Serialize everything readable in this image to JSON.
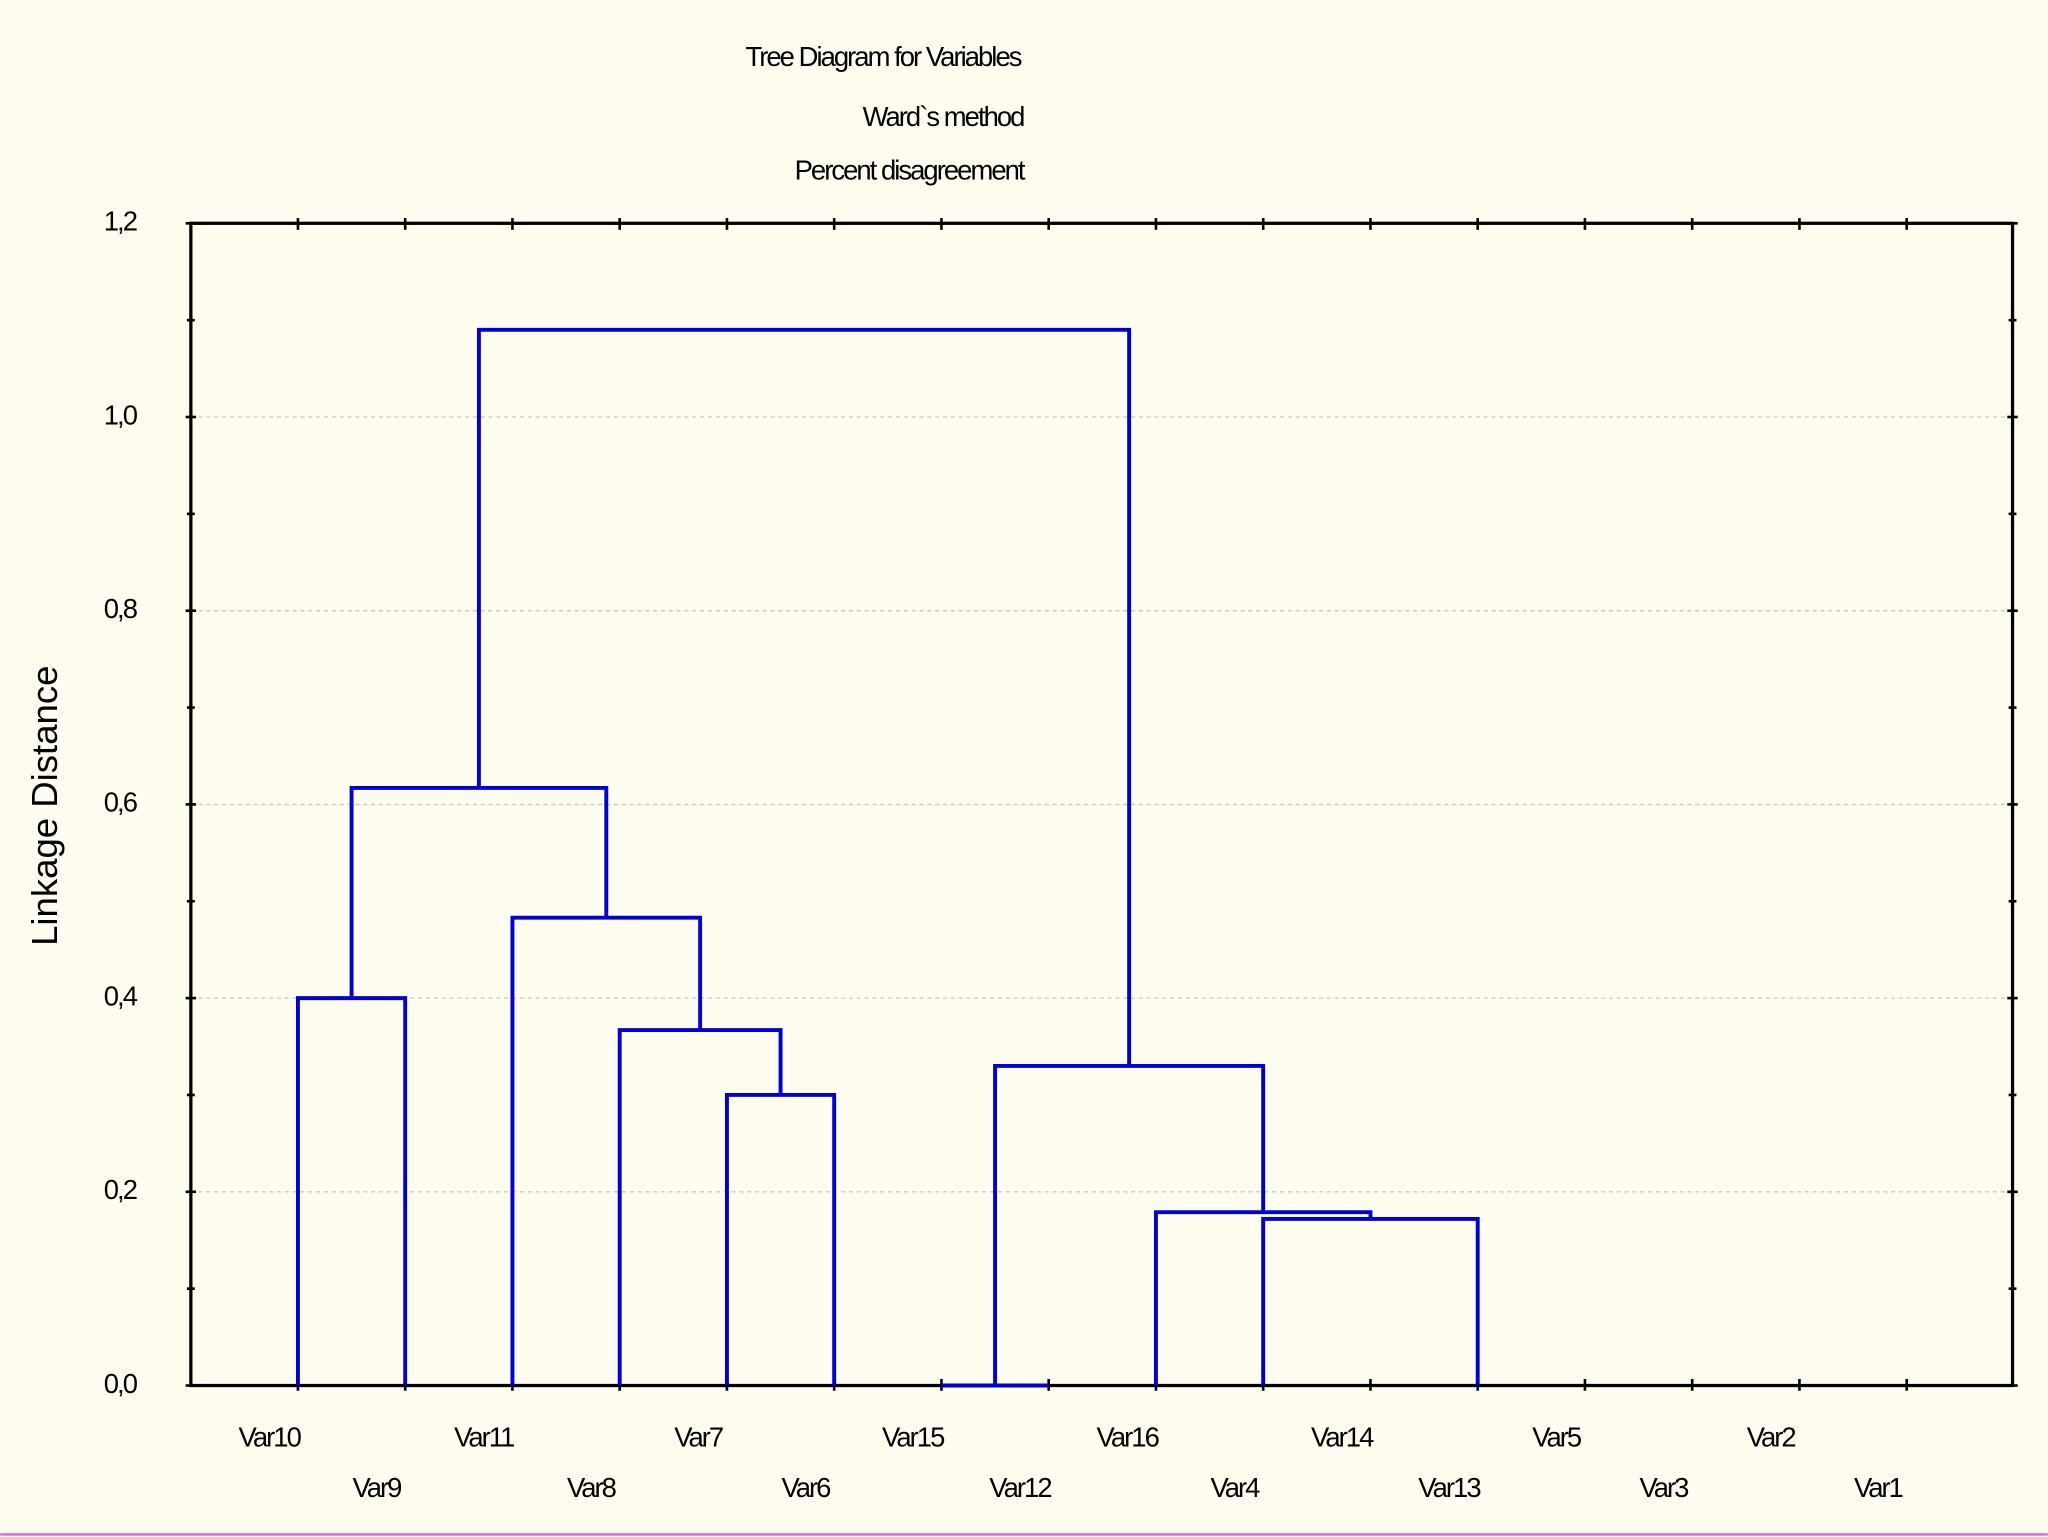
{
  "chart_data": {
    "type": "dendrogram",
    "title": "Tree Diagram for  Variables",
    "subtitle": [
      "Ward`s method",
      "Percent disagreement"
    ],
    "y_label": "Linkage Distance",
    "categories": [
      "Var10",
      "Var9",
      "Var11",
      "Var8",
      "Var7",
      "Var6",
      "Var15",
      "Var12",
      "Var16",
      "Var4",
      "Var14",
      "Var13",
      "Var5",
      "Var3",
      "Var2",
      "Var1"
    ],
    "linkage": [
      [
        0,
        1,
        0.4
      ],
      [
        4,
        5,
        0.3
      ],
      [
        3,
        17,
        0.367
      ],
      [
        2,
        18,
        0.483
      ],
      [
        16,
        19,
        0.617
      ],
      [
        6,
        7,
        0
      ],
      [
        9,
        11,
        0.172
      ],
      [
        8,
        22,
        0.179
      ],
      [
        21,
        23,
        0.33
      ],
      [
        20,
        24,
        1.09
      ]
    ],
    "color": "#0000dd",
    "ylim": [
      0,
      1.2
    ],
    "yticks": [
      {
        "value": 0,
        "label": "0,0"
      },
      {
        "value": 0.2,
        "label": "0,2"
      },
      {
        "value": 0.4,
        "label": "0,4"
      },
      {
        "value": 0.6,
        "label": "0,6"
      },
      {
        "value": 0.8,
        "label": "0,8"
      },
      {
        "value": 1.0,
        "label": "1,0"
      },
      {
        "value": 1.2,
        "label": "1,2"
      }
    ],
    "grid": true
  }
}
